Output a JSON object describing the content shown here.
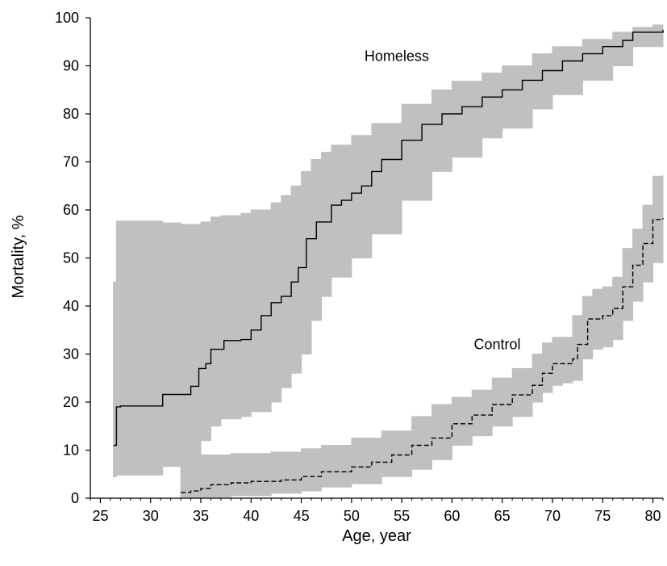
{
  "chart_data": {
    "type": "line",
    "title": "",
    "xlabel": "Age, year",
    "ylabel": "Mortality, %",
    "xlim": [
      24,
      81
    ],
    "ylim": [
      0,
      100
    ],
    "x_ticks": [
      25,
      30,
      35,
      40,
      45,
      50,
      55,
      60,
      65,
      70,
      75,
      80
    ],
    "y_ticks": [
      0,
      10,
      20,
      30,
      40,
      50,
      60,
      70,
      80,
      90,
      100
    ],
    "grid": false,
    "legend": "none",
    "colors": {
      "line": "#000000",
      "band": "#c0c0c0"
    },
    "series": [
      {
        "name": "Homeless",
        "line_style": "solid",
        "step": true,
        "points": [
          [
            26.3,
            11
          ],
          [
            26.6,
            19
          ],
          [
            27,
            19.2
          ],
          [
            31,
            19.2
          ],
          [
            31.2,
            21.6
          ],
          [
            33.8,
            21.6
          ],
          [
            34,
            23.3
          ],
          [
            34.6,
            23.3
          ],
          [
            34.8,
            27
          ],
          [
            35.5,
            28
          ],
          [
            36,
            31
          ],
          [
            37,
            31
          ],
          [
            37.3,
            32.8
          ],
          [
            39,
            33
          ],
          [
            40,
            35
          ],
          [
            41,
            38
          ],
          [
            42,
            40.7
          ],
          [
            43,
            42
          ],
          [
            44,
            45
          ],
          [
            44.7,
            48
          ],
          [
            45.5,
            54
          ],
          [
            46.5,
            57.5
          ],
          [
            48,
            61
          ],
          [
            49,
            62
          ],
          [
            50,
            63.5
          ],
          [
            51,
            65
          ],
          [
            52,
            68
          ],
          [
            53,
            70.5
          ],
          [
            55,
            74.5
          ],
          [
            57,
            77.8
          ],
          [
            59,
            80
          ],
          [
            61,
            81.5
          ],
          [
            63,
            83.5
          ],
          [
            65,
            85
          ],
          [
            67,
            87
          ],
          [
            69,
            89
          ],
          [
            71,
            91
          ],
          [
            73,
            92.5
          ],
          [
            75,
            94
          ],
          [
            77,
            95.3
          ],
          [
            78,
            97
          ],
          [
            80,
            97
          ],
          [
            81,
            97.5
          ]
        ]
      },
      {
        "name": "Control",
        "line_style": "dashed",
        "step": true,
        "points": [
          [
            33,
            1.2
          ],
          [
            34,
            1.5
          ],
          [
            35,
            2
          ],
          [
            36,
            2.8
          ],
          [
            38,
            3.2
          ],
          [
            40,
            3.5
          ],
          [
            43,
            3.8
          ],
          [
            45,
            4.5
          ],
          [
            47,
            5.5
          ],
          [
            50,
            6.5
          ],
          [
            52,
            7.5
          ],
          [
            54,
            9
          ],
          [
            56,
            11
          ],
          [
            58,
            12.5
          ],
          [
            60,
            15.5
          ],
          [
            62,
            17.3
          ],
          [
            64,
            19.5
          ],
          [
            66,
            21.5
          ],
          [
            68,
            23.5
          ],
          [
            69,
            26
          ],
          [
            70,
            28
          ],
          [
            72,
            29
          ],
          [
            72.5,
            32
          ],
          [
            73.5,
            37.3
          ],
          [
            75,
            38
          ],
          [
            76,
            39.5
          ],
          [
            77,
            44
          ],
          [
            78,
            48.5
          ],
          [
            79,
            53
          ],
          [
            80,
            58
          ],
          [
            81,
            58.3
          ]
        ]
      }
    ],
    "confidence_bands": [
      {
        "series": "Homeless",
        "points": [
          [
            26.3,
            4.5,
            45
          ],
          [
            26.6,
            4.8,
            57.7
          ],
          [
            31,
            4.8,
            57.7
          ],
          [
            31.2,
            6.6,
            57.3
          ],
          [
            33,
            6.6,
            57
          ],
          [
            33.5,
            7,
            57
          ],
          [
            34,
            9,
            57
          ],
          [
            35,
            12,
            57.5
          ],
          [
            36,
            15,
            58.5
          ],
          [
            37,
            16.5,
            58.8
          ],
          [
            39,
            17,
            59.3
          ],
          [
            40,
            18,
            60
          ],
          [
            42,
            20,
            61.5
          ],
          [
            43,
            23,
            63
          ],
          [
            44,
            26,
            65
          ],
          [
            45,
            30,
            68
          ],
          [
            46,
            37,
            70.5
          ],
          [
            47,
            42,
            72
          ],
          [
            48,
            46,
            73.5
          ],
          [
            50,
            50,
            75.5
          ],
          [
            52,
            55,
            78
          ],
          [
            55,
            62,
            82
          ],
          [
            58,
            68,
            85
          ],
          [
            60,
            71,
            86.8
          ],
          [
            63,
            75,
            88.5
          ],
          [
            65,
            77,
            90
          ],
          [
            68,
            81,
            92.5
          ],
          [
            70,
            84,
            94
          ],
          [
            73,
            87,
            95.5
          ],
          [
            76,
            90,
            97
          ],
          [
            78,
            94,
            98
          ],
          [
            80,
            94,
            98.5
          ],
          [
            81,
            94,
            98.5
          ]
        ]
      },
      {
        "series": "Control",
        "points": [
          [
            33,
            0,
            8.5
          ],
          [
            34,
            0,
            9
          ],
          [
            35,
            0.2,
            9
          ],
          [
            38,
            0.5,
            9.3
          ],
          [
            42,
            1,
            9.6
          ],
          [
            45,
            1.5,
            10.3
          ],
          [
            47,
            2.3,
            11
          ],
          [
            50,
            3,
            12.5
          ],
          [
            53,
            4.5,
            14
          ],
          [
            56,
            6,
            17
          ],
          [
            58,
            8,
            19.5
          ],
          [
            60,
            11,
            21
          ],
          [
            62,
            13,
            22.5
          ],
          [
            64,
            15,
            25
          ],
          [
            66,
            17,
            27
          ],
          [
            68,
            20,
            30
          ],
          [
            69,
            22,
            32.3
          ],
          [
            70,
            23.5,
            33.5
          ],
          [
            71,
            24,
            33.5
          ],
          [
            72,
            24.5,
            38
          ],
          [
            73,
            29,
            42
          ],
          [
            74,
            31,
            43.5
          ],
          [
            75,
            31.5,
            44
          ],
          [
            76,
            33,
            46
          ],
          [
            77,
            37,
            52
          ],
          [
            78,
            41,
            56
          ],
          [
            79,
            45,
            61
          ],
          [
            80,
            49,
            67
          ],
          [
            81,
            49,
            67.3
          ]
        ]
      }
    ],
    "annotations": [
      {
        "text": "Homeless",
        "x": 54.5,
        "y": 91
      },
      {
        "text": "Control",
        "x": 64.5,
        "y": 31
      }
    ]
  }
}
